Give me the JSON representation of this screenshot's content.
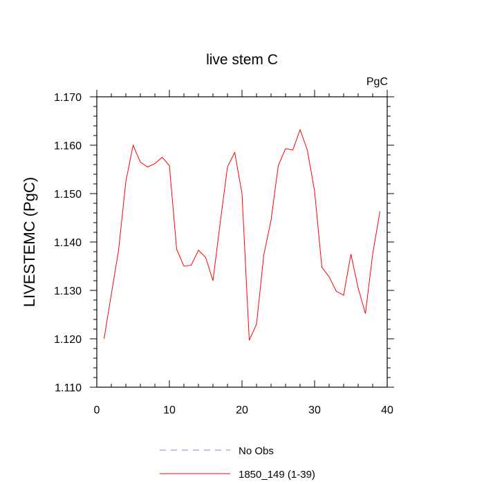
{
  "chart_data": {
    "type": "line",
    "title": "live stem C",
    "units_label": "PgC",
    "ylabel": "LIVESTEMC  (PgC)",
    "xlabel": "",
    "xlim": [
      0,
      40
    ],
    "ylim": [
      1.11,
      1.17
    ],
    "x_ticks": [
      0,
      10,
      20,
      30,
      40
    ],
    "x_tick_labels": [
      "0",
      "10",
      "20",
      "30",
      "40"
    ],
    "y_ticks": [
      1.11,
      1.12,
      1.13,
      1.14,
      1.15,
      1.16,
      1.17
    ],
    "y_tick_labels": [
      "1.110",
      "1.120",
      "1.130",
      "1.140",
      "1.150",
      "1.160",
      "1.170"
    ],
    "grid": false,
    "legend_position": "bottom",
    "series": [
      {
        "name": "1850_149 (1-39)",
        "color": "#ff0000",
        "style": "solid",
        "x": [
          1,
          2,
          3,
          4,
          5,
          6,
          7,
          8,
          9,
          10,
          11,
          12,
          13,
          14,
          15,
          16,
          17,
          18,
          19,
          20,
          21,
          22,
          23,
          24,
          25,
          26,
          27,
          28,
          29,
          30,
          31,
          32,
          33,
          34,
          35,
          36,
          37,
          38,
          39
        ],
        "y": [
          1.12,
          1.1292,
          1.1383,
          1.1525,
          1.16,
          1.1565,
          1.1555,
          1.1562,
          1.1575,
          1.1558,
          1.1385,
          1.135,
          1.1352,
          1.1383,
          1.1368,
          1.132,
          1.144,
          1.1555,
          1.1585,
          1.15,
          1.1197,
          1.123,
          1.1373,
          1.1445,
          1.1558,
          1.1593,
          1.159,
          1.1632,
          1.159,
          1.1505,
          1.1348,
          1.1328,
          1.1298,
          1.129,
          1.1375,
          1.1305,
          1.1252,
          1.1375,
          1.1463
        ]
      },
      {
        "name": "No Obs",
        "color": "#8080ff",
        "style": "dashed",
        "x": [],
        "y": []
      }
    ]
  }
}
